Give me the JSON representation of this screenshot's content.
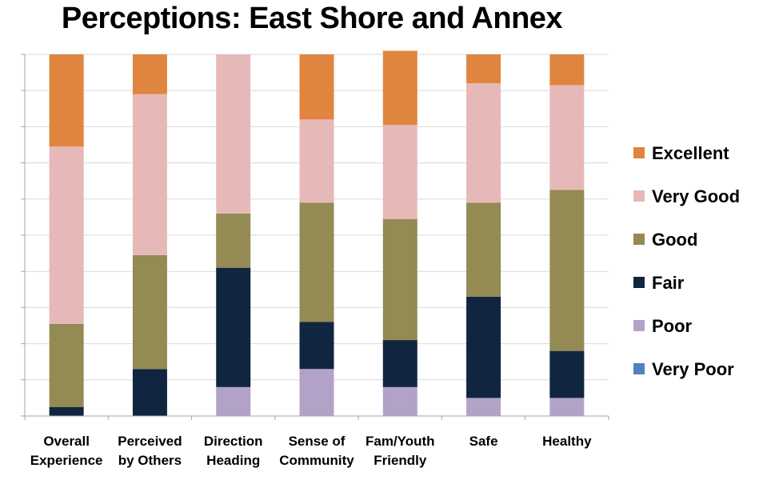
{
  "chart_data": {
    "type": "bar",
    "stacked": true,
    "percent_stacked": true,
    "title": "Perceptions: East Shore and Annex",
    "categories": [
      [
        "Overall",
        "Experience"
      ],
      [
        "Perceived",
        "by Others"
      ],
      [
        "Direction",
        "Heading"
      ],
      [
        "Sense of",
        "Community"
      ],
      [
        "Fam/Youth",
        "Friendly"
      ],
      [
        "Safe"
      ],
      [
        "Healthy"
      ]
    ],
    "ylim": [
      0,
      100
    ],
    "y_gridlines": true,
    "y_tick_labels_visible": false,
    "legend_position": "right",
    "series": [
      {
        "name": "Very Poor",
        "color": "#4f81bd",
        "values": [
          0,
          0,
          0,
          0,
          0,
          0,
          0
        ]
      },
      {
        "name": "Poor",
        "color": "#b3a2c7",
        "values": [
          0,
          0,
          8,
          13,
          8,
          5,
          5
        ]
      },
      {
        "name": "Fair",
        "color": "#10253f",
        "values": [
          2.5,
          13,
          33,
          13,
          13,
          28,
          13
        ]
      },
      {
        "name": "Good",
        "color": "#948a54",
        "values": [
          23,
          31.5,
          15,
          33,
          33.5,
          26,
          44.5
        ]
      },
      {
        "name": "Very Good",
        "color": "#e6b9b8",
        "values": [
          49,
          44.5,
          44,
          23,
          26,
          33,
          29
        ]
      },
      {
        "name": "Excellent",
        "color": "#e0853f",
        "values": [
          25.5,
          11,
          0,
          18,
          20.5,
          8,
          8.5
        ]
      }
    ]
  }
}
